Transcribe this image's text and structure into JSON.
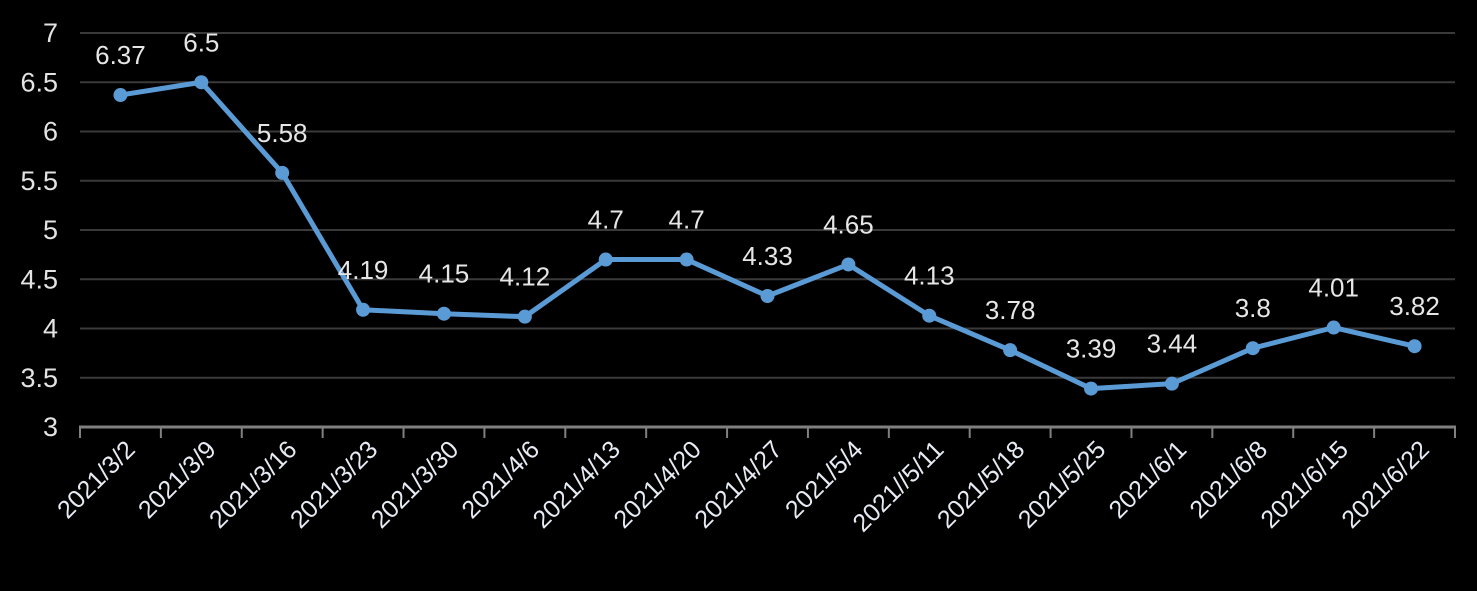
{
  "chart_data": {
    "type": "line",
    "title": "",
    "xlabel": "",
    "ylabel": "",
    "categories": [
      "2021/3/2",
      "2021/3/9",
      "2021/3/16",
      "2021/3/23",
      "2021/3/30",
      "2021/4/6",
      "2021/4/13",
      "2021/4/20",
      "2021/4/27",
      "2021/5/4",
      "2021//5/11",
      "2021/5/18",
      "2021/5/25",
      "2021/6/1",
      "2021/6/8",
      "2021/6/15",
      "2021/6/22"
    ],
    "values": [
      6.37,
      6.5,
      5.58,
      4.19,
      4.15,
      4.12,
      4.7,
      4.7,
      4.33,
      4.65,
      4.13,
      3.78,
      3.39,
      3.44,
      3.8,
      4.01,
      3.82
    ],
    "data_labels": [
      "6.37",
      "6.5",
      "5.58",
      "4.19",
      "4.15",
      "4.12",
      "4.7",
      "4.7",
      "4.33",
      "4.65",
      "4.13",
      "3.78",
      "3.39",
      "3.44",
      "3.8",
      "4.01",
      "3.82"
    ],
    "ylim": [
      3,
      7
    ],
    "ytick_step": 0.5,
    "yticks": [
      "7",
      "6.5",
      "6",
      "5.5",
      "5",
      "4.5",
      "4",
      "3.5",
      "3"
    ],
    "grid": true,
    "legend": false,
    "x_label_rotation_deg": -45,
    "colors": {
      "background": "#000000",
      "line": "#5B9BD5",
      "marker": "#5B9BD5",
      "gridline": "#3a3a3a",
      "axis": "#808080",
      "data_label_text": "#e6e6e6",
      "ytick_text": "#e3e3e3",
      "xtick_text": "#e7ecf4"
    }
  }
}
